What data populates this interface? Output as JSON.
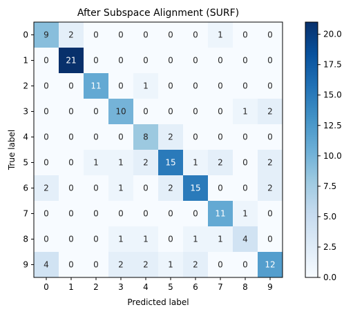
{
  "chart_data": {
    "type": "heatmap",
    "title": "After Subspace Alignment (SURF)",
    "xlabel": "Predicted label",
    "ylabel": "True label",
    "x_categories": [
      "0",
      "1",
      "2",
      "3",
      "4",
      "5",
      "6",
      "7",
      "8",
      "9"
    ],
    "y_categories": [
      "0",
      "1",
      "2",
      "3",
      "4",
      "5",
      "6",
      "7",
      "8",
      "9"
    ],
    "matrix": [
      [
        9,
        2,
        0,
        0,
        0,
        0,
        0,
        1,
        0,
        0
      ],
      [
        0,
        21,
        0,
        0,
        0,
        0,
        0,
        0,
        0,
        0
      ],
      [
        0,
        0,
        11,
        0,
        1,
        0,
        0,
        0,
        0,
        0
      ],
      [
        0,
        0,
        0,
        10,
        0,
        0,
        0,
        0,
        1,
        2
      ],
      [
        0,
        0,
        0,
        0,
        8,
        2,
        0,
        0,
        0,
        0
      ],
      [
        0,
        0,
        1,
        1,
        2,
        15,
        1,
        2,
        0,
        2
      ],
      [
        2,
        0,
        0,
        1,
        0,
        2,
        15,
        0,
        0,
        2
      ],
      [
        0,
        0,
        0,
        0,
        0,
        0,
        0,
        11,
        1,
        0
      ],
      [
        0,
        0,
        0,
        1,
        1,
        0,
        1,
        1,
        4,
        0
      ],
      [
        4,
        0,
        0,
        2,
        2,
        1,
        2,
        0,
        0,
        12
      ]
    ],
    "colormap": "Blues",
    "vmin": 0,
    "vmax": 21,
    "colorbar_ticks": [
      "0.0",
      "2.5",
      "5.0",
      "7.5",
      "10.0",
      "12.5",
      "15.0",
      "17.5",
      "20.0"
    ],
    "colorbar_tick_values": [
      0,
      2.5,
      5,
      7.5,
      10,
      12.5,
      15,
      17.5,
      20
    ],
    "text_color_dark": "#262626",
    "text_color_light": "#ffffff"
  }
}
